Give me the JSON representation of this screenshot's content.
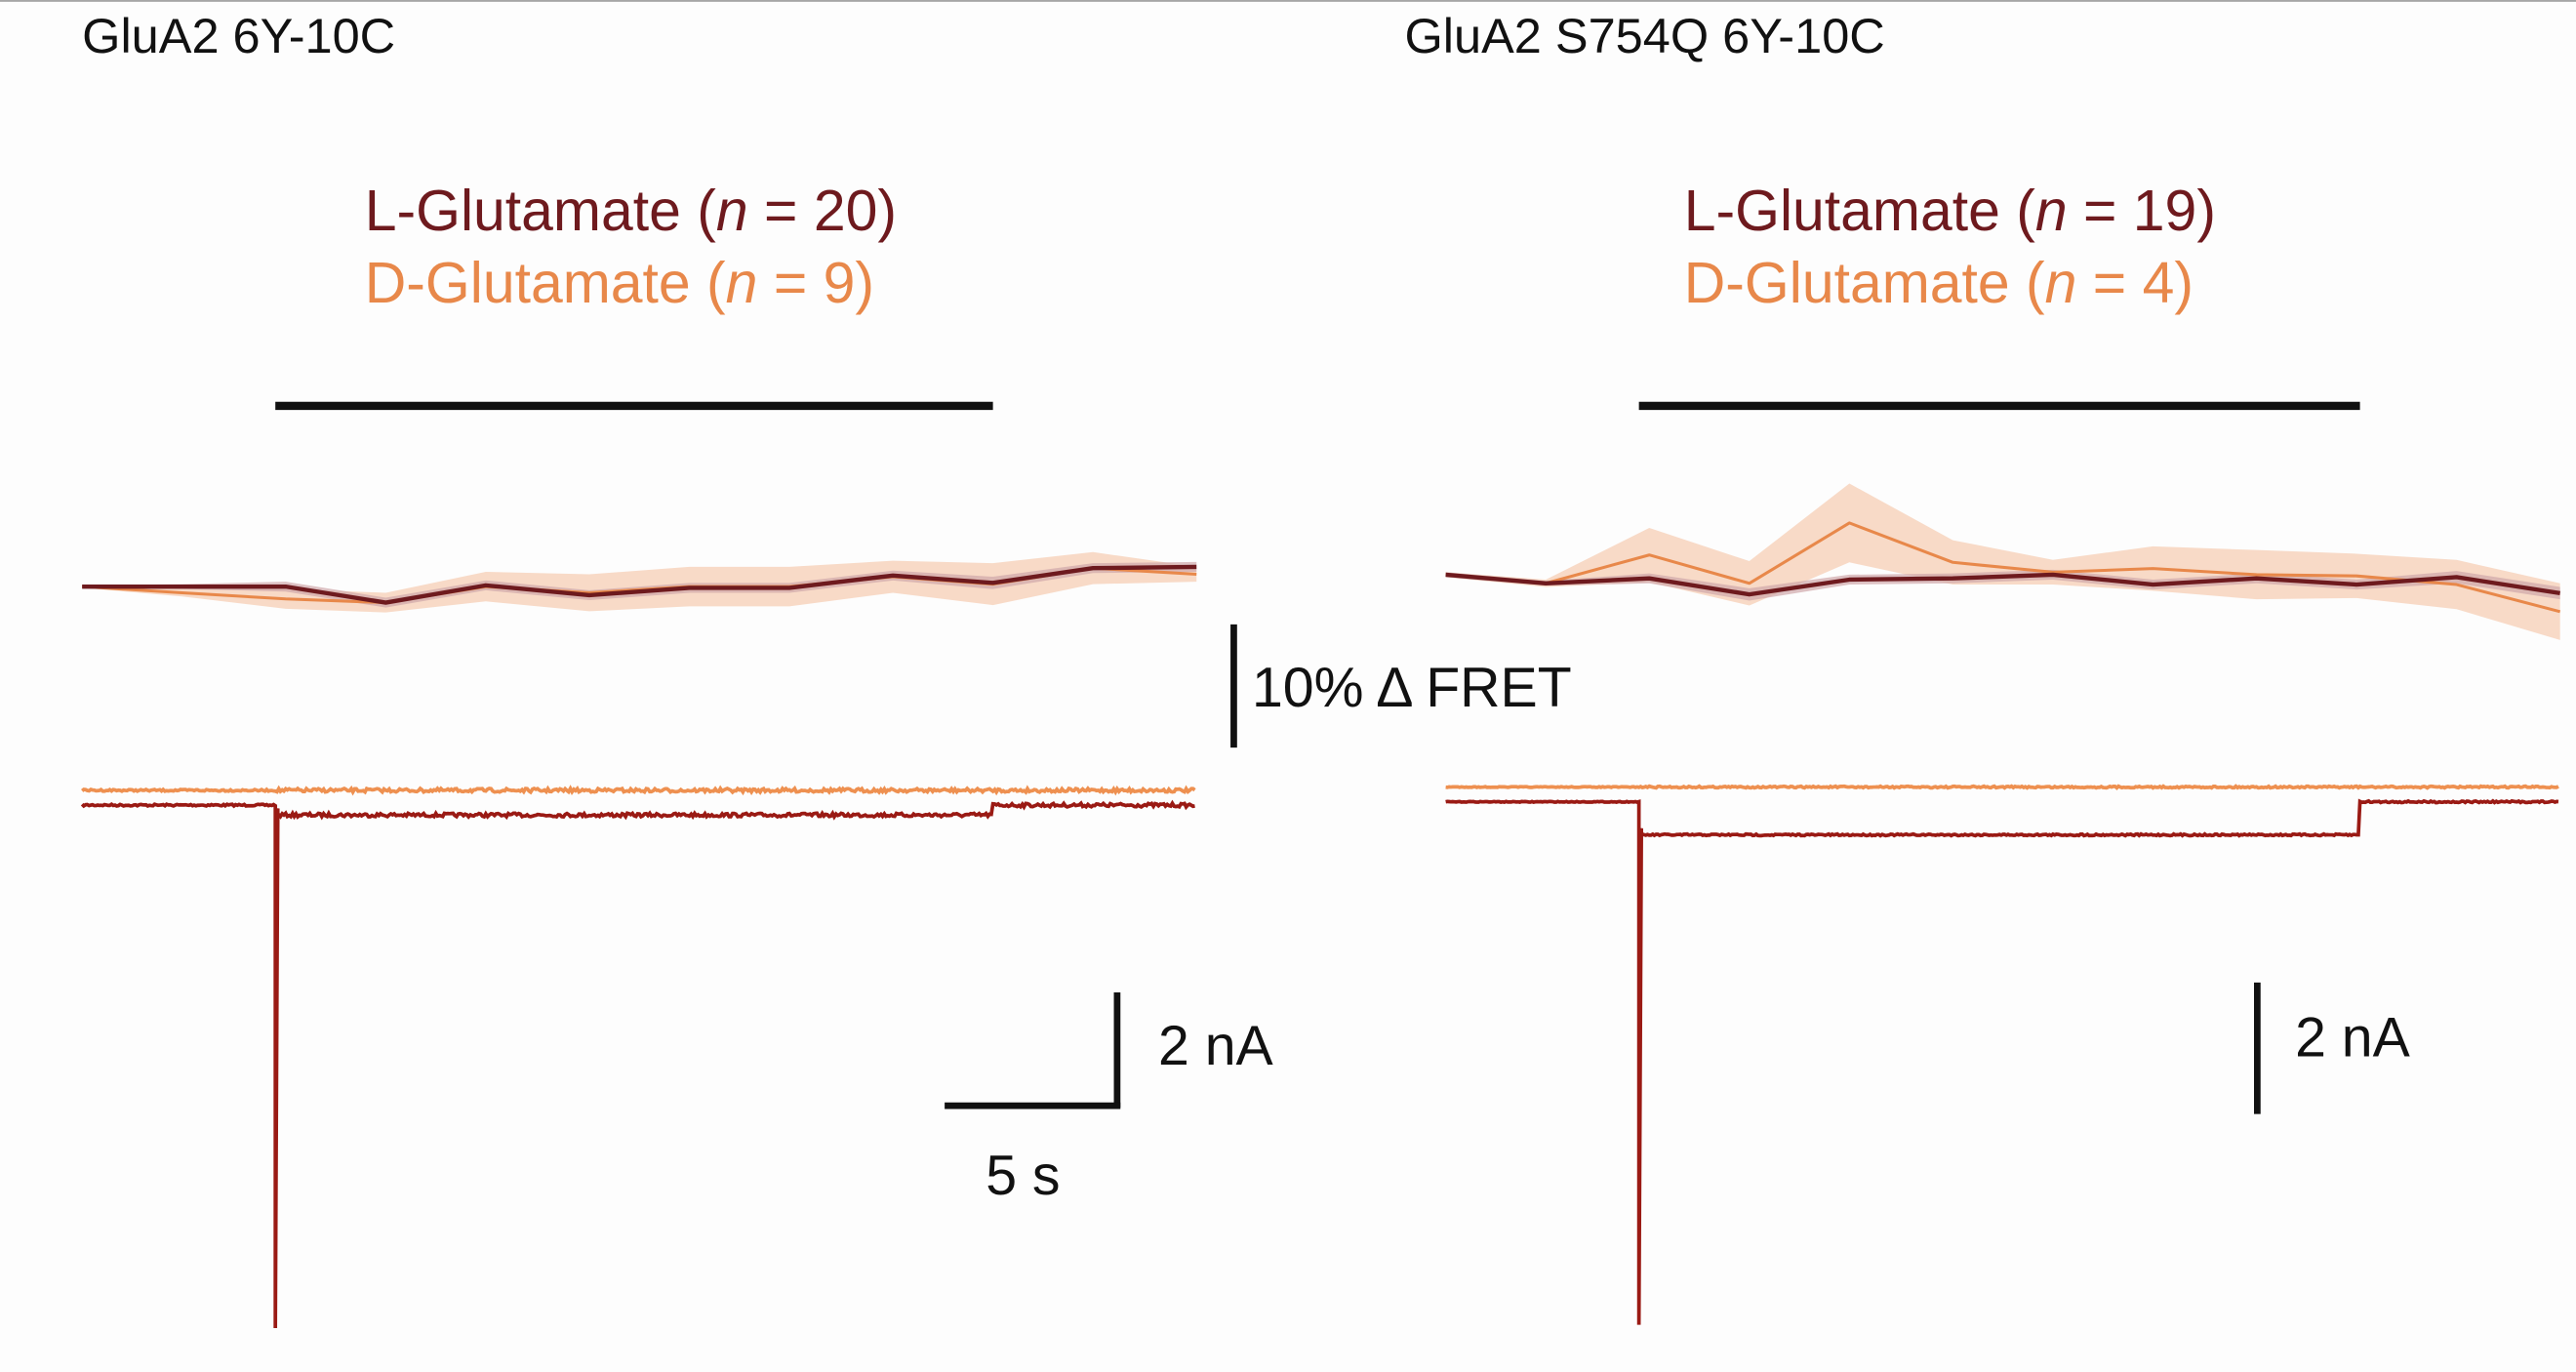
{
  "colors": {
    "l_glutamate": "#6e1a1e",
    "d_glutamate": "#e8884a",
    "current_l": "#9a1a14",
    "current_d": "#ee9050",
    "band_d": "#f5cdb4",
    "band_l": "#cfa7a9",
    "bar": "#111111"
  },
  "scale_bars": {
    "fret_label": "10% Δ FRET",
    "fret_value_percent": 10,
    "current_label": "2 nA",
    "current_value_nA": 2,
    "time_label": "5 s",
    "time_value_s": 5
  },
  "chart_data": [
    {
      "type": "line",
      "title": "GluA2 6Y-10C",
      "legend": [
        {
          "name": "L-Glutamate",
          "n_label": "n",
          "n_value": "= 20)",
          "open": "("
        },
        {
          "name": "D-Glutamate",
          "n_label": "n",
          "n_value": "= 9)",
          "open": "("
        }
      ],
      "application_s": [
        5.6,
        26.4
      ],
      "fret": {
        "time_s": [
          0,
          2.9,
          5.9,
          8.8,
          11.7,
          14.7,
          17.6,
          20.5,
          23.5,
          26.4,
          29.3,
          32.3
        ],
        "series": [
          {
            "name": "L-Glutamate",
            "values": [
              0,
              0,
              0,
              -1.3,
              0.1,
              -0.7,
              -0.1,
              -0.1,
              0.9,
              0.3,
              1.5,
              1.6
            ],
            "sem": [
              0.1,
              0.2,
              0.4,
              0.4,
              0.4,
              0.4,
              0.4,
              0.4,
              0.4,
              0.5,
              0.4,
              0.4
            ]
          },
          {
            "name": "D-Glutamate",
            "values": [
              0,
              -0.5,
              -1.0,
              -1.3,
              0,
              -0.5,
              0,
              0,
              0.8,
              0.2,
              1.5,
              1.0
            ],
            "sem": [
              0.1,
              0.3,
              0.8,
              0.8,
              1.2,
              1.5,
              1.6,
              1.6,
              1.3,
              1.7,
              1.3,
              0.6
            ]
          }
        ]
      },
      "current": {
        "duration_s": 32.3,
        "series": [
          {
            "name": "L-Glutamate",
            "peak_nA": -9.5,
            "steady_nA": -0.18
          },
          {
            "name": "D-Glutamate",
            "peak_nA": 0,
            "steady_nA": 0
          }
        ]
      }
    },
    {
      "type": "line",
      "title": "GluA2  S754Q 6Y-10C",
      "legend": [
        {
          "name": "L-Glutamate",
          "n_label": "n",
          "n_value": "= 19)",
          "open": "("
        },
        {
          "name": "D-Glutamate",
          "n_label": "n",
          "n_value": "= 4)",
          "open": "("
        }
      ],
      "application_s": [
        5.6,
        26.5
      ],
      "fret": {
        "time_s": [
          0,
          2.9,
          5.9,
          8.8,
          11.7,
          14.7,
          17.6,
          20.5,
          23.5,
          26.4,
          29.3,
          32.3
        ],
        "series": [
          {
            "name": "L-Glutamate",
            "values": [
              0.3,
              -0.4,
              0,
              -1.3,
              -0.1,
              0,
              0.3,
              -0.5,
              0,
              -0.5,
              0.1,
              -1.2
            ],
            "sem": [
              0.2,
              0.2,
              0.4,
              0.5,
              0.4,
              0.4,
              0.4,
              0.4,
              0.4,
              0.4,
              0.5,
              0.5
            ]
          },
          {
            "name": "D-Glutamate",
            "values": [
              0.3,
              -0.4,
              1.9,
              -0.4,
              4.5,
              1.3,
              0.5,
              0.8,
              0.3,
              0.2,
              -0.5,
              -2.7
            ],
            "sem": [
              0.2,
              0.3,
              2.2,
              1.8,
              3.2,
              1.8,
              1.0,
              1.8,
              2.0,
              1.8,
              2.0,
              2.3
            ]
          }
        ]
      },
      "current": {
        "duration_s": 32.3,
        "series": [
          {
            "name": "L-Glutamate",
            "peak_nA": -9.5,
            "steady_nA": -0.6
          },
          {
            "name": "D-Glutamate",
            "peak_nA": 0,
            "steady_nA": 0
          }
        ]
      }
    }
  ]
}
